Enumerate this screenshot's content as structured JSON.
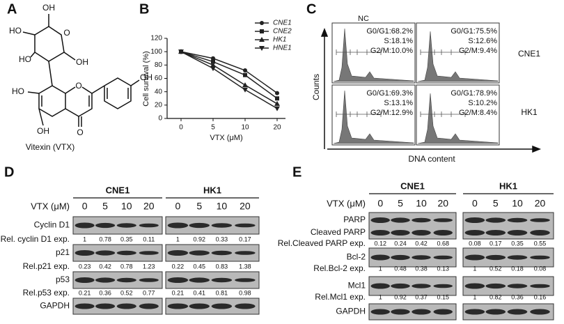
{
  "panel_labels": {
    "a": "A",
    "b": "B",
    "c": "C",
    "d": "D",
    "e": "E"
  },
  "structure": {
    "atoms": [
      "OH",
      "HO",
      "HO",
      "OH",
      "O",
      "HO",
      "OH",
      "O",
      "O",
      "OH"
    ],
    "caption": "Vitexin (VTX)"
  },
  "chart_data": {
    "type": "line",
    "x_label": "VTX (μM)",
    "y_label": "Cell survival (%)",
    "categories": [
      "0",
      "5",
      "10",
      "20"
    ],
    "ylim": [
      0,
      120
    ],
    "yticks": [
      0,
      20,
      40,
      60,
      80,
      100,
      120
    ],
    "series": [
      {
        "name": "CNE1",
        "color": "#222222",
        "marker": "circle",
        "values": [
          100,
          90,
          72,
          38
        ]
      },
      {
        "name": "CNE2",
        "color": "#222222",
        "marker": "square",
        "values": [
          100,
          85,
          65,
          30
        ]
      },
      {
        "name": "HK1",
        "color": "#222222",
        "marker": "triangle",
        "values": [
          100,
          80,
          50,
          22
        ]
      },
      {
        "name": "HNE1",
        "color": "#222222",
        "marker": "triangle-down",
        "values": [
          100,
          75,
          43,
          15
        ]
      }
    ]
  },
  "flow": {
    "column_label": "NC",
    "row_labels": [
      "CNE1",
      "HK1"
    ],
    "y_label": "Counts",
    "x_label": "DNA content",
    "panels": [
      [
        "G0/G1:68.2%",
        "S:18.1%",
        "G2/M:10.0%"
      ],
      [
        "G0/G1:75.5%",
        "S:12.6%",
        "G2/M:9.4%"
      ],
      [
        "G0/G1:69.3%",
        "S:13.1%",
        "G2/M:12.9%"
      ],
      [
        "G0/G1:78.9%",
        "S:10.2%",
        "G2/M:8.4%"
      ]
    ]
  },
  "western_d": {
    "dose_label": "VTX (μM)",
    "groups": [
      {
        "name": "CNE1",
        "doses": [
          "0",
          "5",
          "10",
          "20"
        ]
      },
      {
        "name": "HK1",
        "doses": [
          "0",
          "5",
          "10",
          "20"
        ]
      }
    ],
    "rows": [
      {
        "proteins": [
          "Cyclin D1"
        ],
        "quant_label": "Rel. cyclin D1 exp.",
        "quant": [
          [
            "1",
            "0.78",
            "0.35",
            "0.11"
          ],
          [
            "1",
            "0.92",
            "0.33",
            "0.17"
          ]
        ]
      },
      {
        "proteins": [
          "p21"
        ],
        "quant_label": "Rel.p21 exp.",
        "quant": [
          [
            "0.23",
            "0.42",
            "0.78",
            "1.23"
          ],
          [
            "0.22",
            "0.45",
            "0.83",
            "1.38"
          ]
        ]
      },
      {
        "proteins": [
          "p53"
        ],
        "quant_label": "Rel.p53 exp.",
        "quant": [
          [
            "0.21",
            "0.36",
            "0.52",
            "0.77"
          ],
          [
            "0.21",
            "0.41",
            "0.81",
            "0.98"
          ]
        ]
      },
      {
        "proteins": [
          "GAPDH"
        ]
      }
    ]
  },
  "western_e": {
    "dose_label": "VTX (μM)",
    "groups": [
      {
        "name": "CNE1",
        "doses": [
          "0",
          "5",
          "10",
          "20"
        ]
      },
      {
        "name": "HK1",
        "doses": [
          "0",
          "5",
          "10",
          "20"
        ]
      }
    ],
    "rows": [
      {
        "proteins": [
          "PARP",
          "Cleaved PARP"
        ],
        "quant_label": "Rel.Cleaved PARP exp.",
        "quant": [
          [
            "0.12",
            "0.24",
            "0.42",
            "0.68"
          ],
          [
            "0.08",
            "0.17",
            "0.35",
            "0.55"
          ]
        ]
      },
      {
        "proteins": [
          "Bcl-2"
        ],
        "quant_label": "Rel.Bcl-2 exp.",
        "quant": [
          [
            "1",
            "0.48",
            "0.38",
            "0.13"
          ],
          [
            "1",
            "0.52",
            "0.18",
            "0.08"
          ]
        ]
      },
      {
        "proteins": [
          "Mcl1"
        ],
        "quant_label": "Rel.Mcl1 exp.",
        "quant": [
          [
            "1",
            "0.92",
            "0.37",
            "0.15"
          ],
          [
            "1",
            "0.82",
            "0.36",
            "0.16"
          ]
        ]
      },
      {
        "proteins": [
          "GAPDH"
        ]
      }
    ]
  }
}
